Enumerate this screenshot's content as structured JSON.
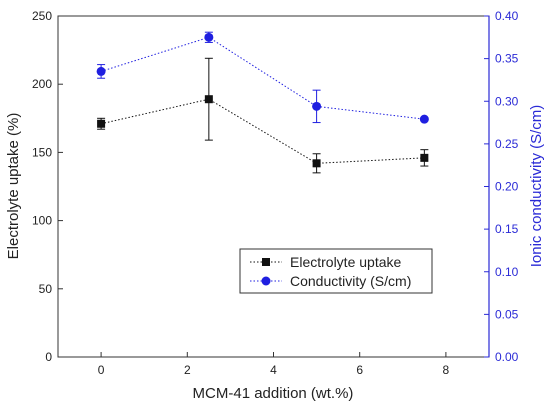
{
  "chart_data": {
    "type": "line",
    "xlabel": "MCM-41 addition (wt.%)",
    "ylabel_left": "Electrolyte uptake (%)",
    "ylabel_right": "Ionic conductivity (S/cm)",
    "xlim": [
      -1,
      9
    ],
    "ylim_left": [
      0,
      250
    ],
    "ylim_right": [
      0.0,
      0.4
    ],
    "x_ticks": [
      "0",
      "2",
      "4",
      "6",
      "8"
    ],
    "y_ticks_left": [
      "0",
      "50",
      "100",
      "150",
      "200",
      "250"
    ],
    "y_ticks_right": [
      "0.00",
      "0.05",
      "0.10",
      "0.15",
      "0.20",
      "0.25",
      "0.30",
      "0.35",
      "0.40"
    ],
    "legend_position": "lower-right",
    "grid": false,
    "series": [
      {
        "name": "Electrolyte uptake",
        "axis": "left",
        "color": "#111111",
        "marker": "square",
        "line_style": "dotted",
        "x": [
          0,
          2.5,
          5,
          7.5
        ],
        "y": [
          171,
          189,
          142,
          146
        ],
        "error": [
          4,
          30,
          7,
          6
        ]
      },
      {
        "name": "Conductivity (S/cm)",
        "axis": "right",
        "color": "#1f1fe0",
        "marker": "circle",
        "line_style": "dotted",
        "x": [
          0,
          2.5,
          5,
          7.5
        ],
        "y": [
          0.335,
          0.375,
          0.294,
          0.279
        ],
        "error": [
          0.008,
          0.006,
          0.019,
          0.0
        ]
      }
    ]
  }
}
